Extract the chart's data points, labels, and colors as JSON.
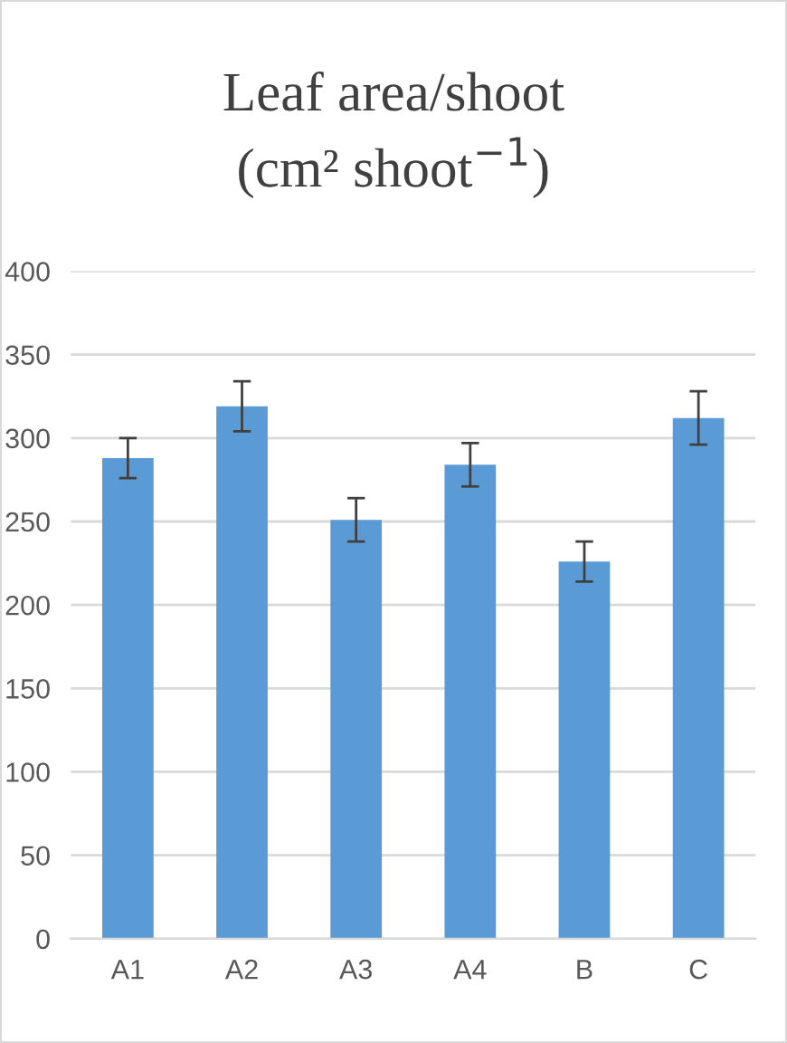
{
  "chart_data": {
    "type": "bar",
    "title": "Leaf area/shoot\n(cm² shoot$^{−1}$)",
    "categories": [
      "A1",
      "A2",
      "A3",
      "A4",
      "B",
      "C"
    ],
    "values": [
      288,
      319,
      251,
      284,
      226,
      312
    ],
    "errors": [
      12,
      15,
      13,
      13,
      12,
      16
    ],
    "color": "#5b9bd5",
    "ylim": [
      0,
      400
    ],
    "yticks": [
      0,
      50,
      100,
      150,
      200,
      250,
      300,
      350,
      400
    ],
    "grid": "y"
  }
}
